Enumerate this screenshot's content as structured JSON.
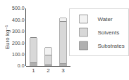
{
  "chart_data": {
    "type": "bar",
    "stacked": true,
    "categories": [
      "1",
      "2",
      "3"
    ],
    "series": [
      {
        "name": "Substrates",
        "color": "#b0b0b0",
        "values": [
          30,
          10,
          20
        ]
      },
      {
        "name": "Solvents",
        "color": "#d8d8d8",
        "values": [
          215,
          85,
          370
        ]
      },
      {
        "name": "Water",
        "color": "#f2f2f2",
        "values": [
          0,
          65,
          25
        ]
      }
    ],
    "ylabel": "Euro kg⁻¹",
    "ylim": [
      0,
      500
    ],
    "yticks": [
      {
        "value": 0,
        "label": "0.0"
      },
      {
        "value": 100,
        "label": "100.0"
      },
      {
        "value": 200,
        "label": "200.0"
      },
      {
        "value": 300,
        "label": "300.0"
      },
      {
        "value": 400,
        "label": "400.0"
      },
      {
        "value": 500,
        "label": "500.0"
      }
    ],
    "grid": false,
    "legend": "right"
  }
}
